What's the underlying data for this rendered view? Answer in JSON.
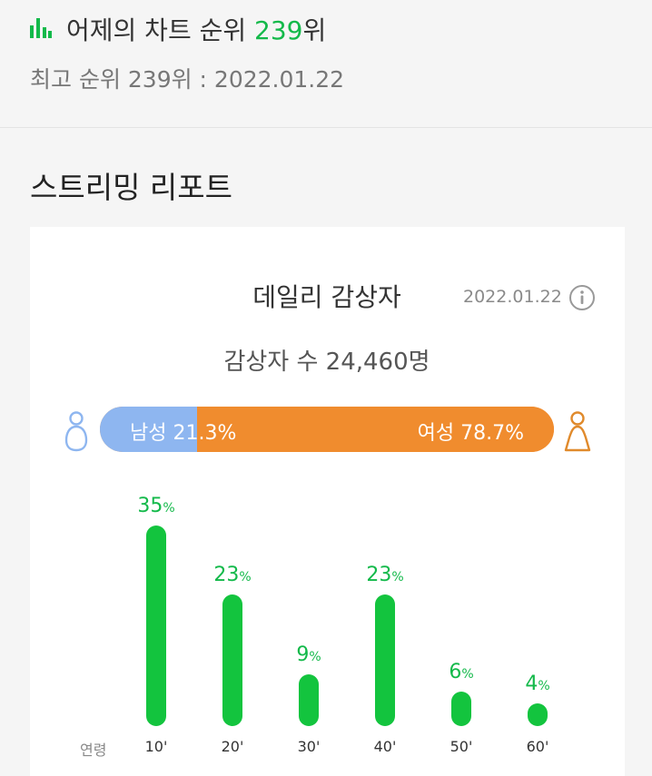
{
  "header": {
    "rank_prefix": "어제의 차트 순위",
    "rank_value": "239",
    "rank_suffix": "위",
    "best_rank": "최고 순위 239위 : 2022.01.22"
  },
  "section": {
    "title": "스트리밍 리포트"
  },
  "report": {
    "title": "데일리 감상자",
    "date": "2022.01.22",
    "listeners": "감상자 수 24,460명",
    "gender": {
      "male_label": "남성 21.3%",
      "male_pct": 21.3,
      "female_label": "여성 78.7%",
      "female_pct": 78.7,
      "male_color": "#8eb6f0",
      "female_color": "#f08c2e"
    },
    "age_axis_label": "연령"
  },
  "chart_data": {
    "type": "bar",
    "categories": [
      "10'",
      "20'",
      "30'",
      "40'",
      "50'",
      "60'"
    ],
    "values": [
      35,
      23,
      9,
      23,
      6,
      4
    ],
    "value_unit": "%",
    "color": "#13c43e"
  },
  "icons": {
    "chart": "chart-bars-icon",
    "info": "info-icon",
    "male": "male-person-icon",
    "female": "female-person-icon"
  }
}
